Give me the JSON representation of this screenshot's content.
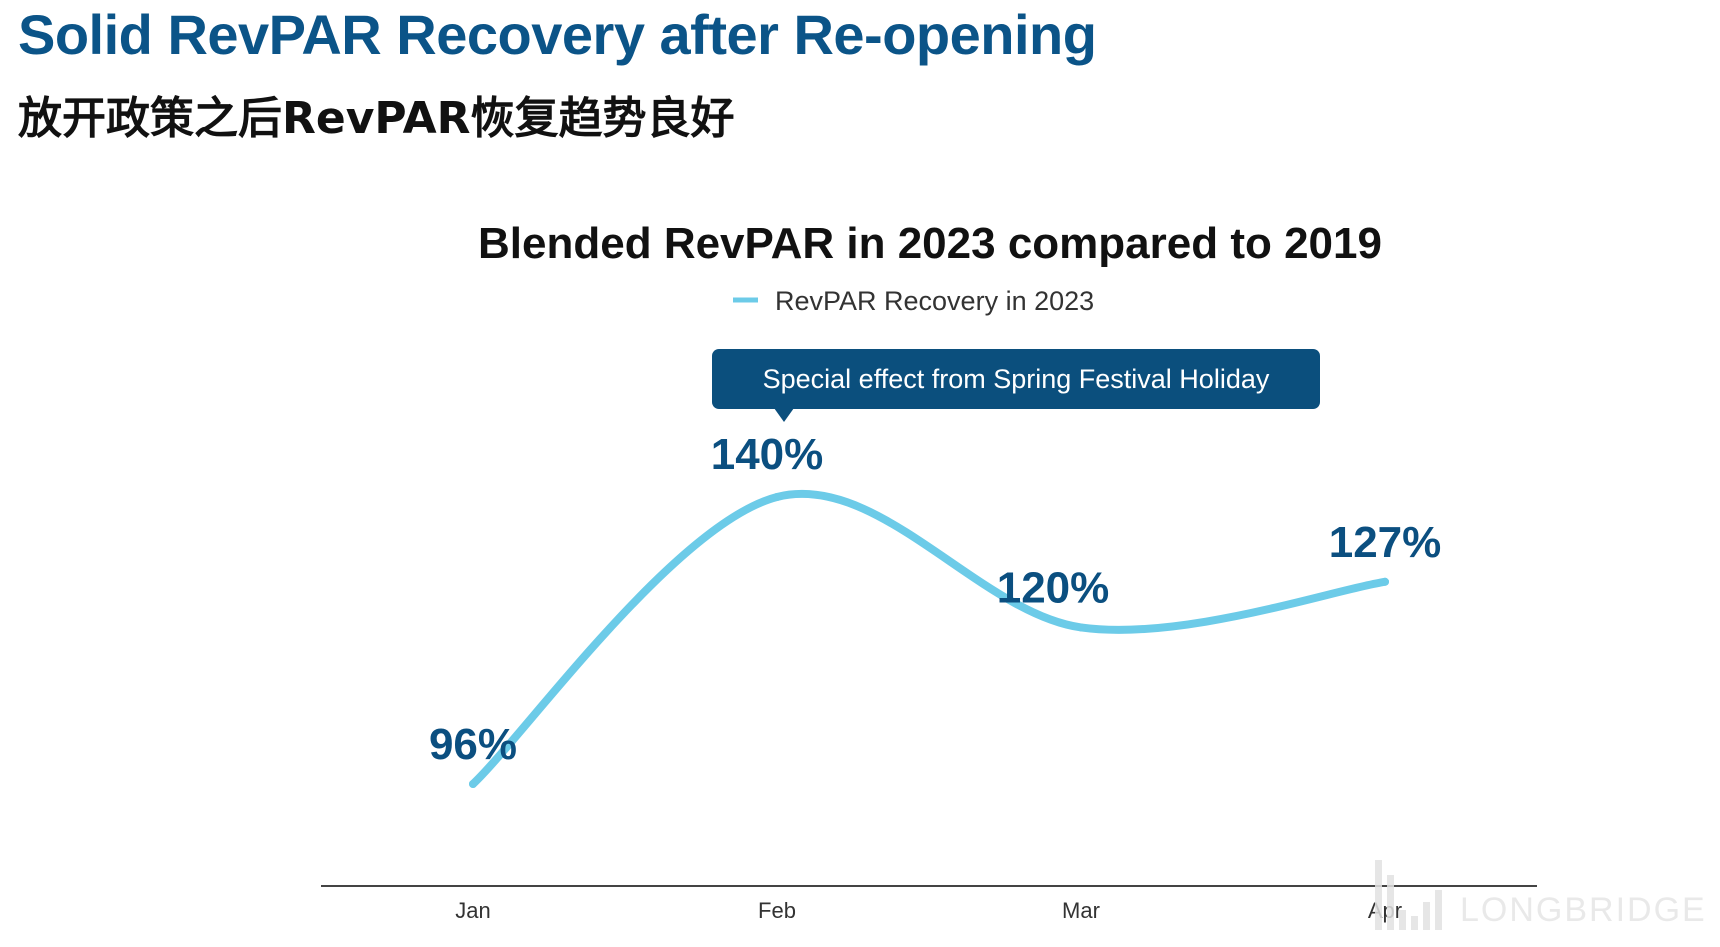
{
  "slide": {
    "title": "Solid RevPAR Recovery after Re-opening",
    "subtitle": "放开政策之后RevPAR恢复趋势良好"
  },
  "chart_data": {
    "type": "line",
    "title": "Blended RevPAR in 2023 compared to 2019",
    "categories": [
      "Jan",
      "Feb",
      "Mar",
      "Apr"
    ],
    "series": [
      {
        "name": "RevPAR Recovery in 2023",
        "values": [
          96,
          140,
          120,
          127
        ],
        "labels": [
          "96%",
          "140%",
          "120%",
          "127%"
        ],
        "color": "#6ccbe8"
      }
    ],
    "annotation": {
      "text": "Special effect from Spring Festival Holiday",
      "category": "Feb"
    },
    "xlabel": "",
    "ylabel": "",
    "ylim": [
      80,
      150
    ],
    "grid": false,
    "legend_position": "top-center"
  },
  "colors": {
    "title": "#0b5488",
    "label": "#0b4f80",
    "annotation_bg": "#0b4f7d",
    "axis": "#444444"
  },
  "watermark": {
    "text": "LONGBRIDGE"
  }
}
